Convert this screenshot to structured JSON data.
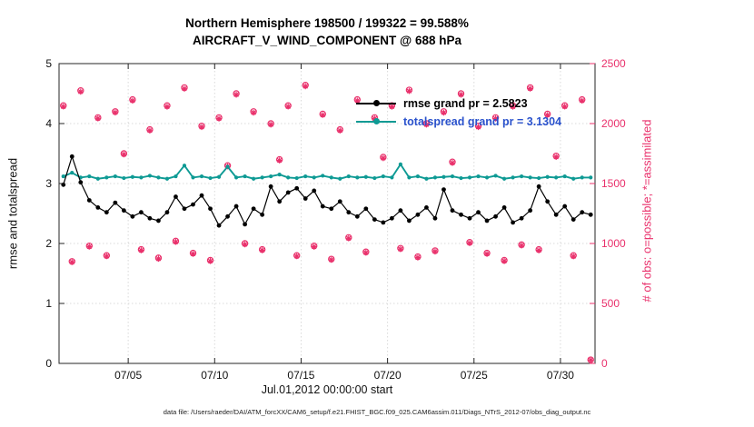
{
  "chart_data": {
    "type": "line",
    "title_line1": "Northern Hemisphere 198500 / 199322 = 99.588%",
    "title_line2": "AIRCRAFT_V_WIND_COMPONENT @ 688 hPa",
    "xlabel": "Jul.01,2012 00:00:00 start",
    "ylabel_left": "rmse and totalspread",
    "ylabel_right": "# of obs: o=possible; *=assimilated",
    "footer": "data file: /Users/raeder/DAI/ATM_forcXX/CAM6_setup/f.e21.FHIST_BGC.f09_025.CAM6assim.011/Diags_NTrS_2012-07/obs_diag_output.nc",
    "legend": [
      {
        "label": "rmse grand pr = 2.5823",
        "series": "rmse"
      },
      {
        "label": "totalspread grand pr = 3.1304",
        "series": "totalspread"
      }
    ],
    "x_range": [
      1,
      32
    ],
    "ylim_left": [
      0,
      5
    ],
    "ylim_right": [
      0,
      2500
    ],
    "xticks": {
      "values": [
        5,
        10,
        15,
        20,
        25,
        30
      ],
      "labels": [
        "07/05",
        "07/10",
        "07/15",
        "07/20",
        "07/25",
        "07/30"
      ]
    },
    "yticks_left": {
      "values": [
        0,
        1,
        2,
        3,
        4,
        5
      ],
      "labels": [
        "0",
        "1",
        "2",
        "3",
        "4",
        "5"
      ]
    },
    "yticks_right": {
      "values": [
        0,
        500,
        1000,
        1500,
        2000,
        2500
      ],
      "labels": [
        "0",
        "500",
        "1000",
        "1500",
        "2000",
        "2500"
      ]
    },
    "colors": {
      "rmse": "#000000",
      "totalspread": "#0e9a94",
      "obs": "#e9306b",
      "legend_rmse_text": "#000000",
      "legend_spread_text": "#2a52cc",
      "axis": "#262626",
      "grid": "#d9d9d9"
    },
    "x": [
      1.25,
      1.75,
      2.25,
      2.75,
      3.25,
      3.75,
      4.25,
      4.75,
      5.25,
      5.75,
      6.25,
      6.75,
      7.25,
      7.75,
      8.25,
      8.75,
      9.25,
      9.75,
      10.25,
      10.75,
      11.25,
      11.75,
      12.25,
      12.75,
      13.25,
      13.75,
      14.25,
      14.75,
      15.25,
      15.75,
      16.25,
      16.75,
      17.25,
      17.75,
      18.25,
      18.75,
      19.25,
      19.75,
      20.25,
      20.75,
      21.25,
      21.75,
      22.25,
      22.75,
      23.25,
      23.75,
      24.25,
      24.75,
      25.25,
      25.75,
      26.25,
      26.75,
      27.25,
      27.75,
      28.25,
      28.75,
      29.25,
      29.75,
      30.25,
      30.75,
      31.25,
      31.75
    ],
    "rmse": [
      2.98,
      3.45,
      3.02,
      2.72,
      2.6,
      2.52,
      2.68,
      2.55,
      2.45,
      2.52,
      2.42,
      2.38,
      2.52,
      2.78,
      2.58,
      2.65,
      2.8,
      2.58,
      2.3,
      2.45,
      2.62,
      2.32,
      2.58,
      2.48,
      2.95,
      2.7,
      2.85,
      2.92,
      2.75,
      2.88,
      2.62,
      2.58,
      2.7,
      2.52,
      2.45,
      2.58,
      2.4,
      2.35,
      2.42,
      2.55,
      2.38,
      2.48,
      2.6,
      2.42,
      2.9,
      2.55,
      2.48,
      2.42,
      2.52,
      2.38,
      2.45,
      2.6,
      2.35,
      2.42,
      2.55,
      2.95,
      2.7,
      2.48,
      2.62,
      2.4,
      2.52,
      2.48
    ],
    "totalspread": [
      3.12,
      3.18,
      3.1,
      3.12,
      3.08,
      3.1,
      3.12,
      3.09,
      3.11,
      3.1,
      3.13,
      3.1,
      3.08,
      3.12,
      3.3,
      3.1,
      3.12,
      3.09,
      3.11,
      3.28,
      3.1,
      3.12,
      3.08,
      3.1,
      3.12,
      3.15,
      3.1,
      3.09,
      3.12,
      3.1,
      3.13,
      3.1,
      3.08,
      3.12,
      3.1,
      3.11,
      3.09,
      3.12,
      3.1,
      3.32,
      3.1,
      3.12,
      3.08,
      3.1,
      3.11,
      3.12,
      3.09,
      3.1,
      3.12,
      3.1,
      3.13,
      3.08,
      3.1,
      3.12,
      3.1,
      3.09,
      3.11,
      3.1,
      3.12,
      3.08,
      3.1,
      3.1
    ],
    "obs_possible": [
      2150,
      850,
      2275,
      980,
      2050,
      900,
      2100,
      1750,
      2200,
      950,
      1950,
      880,
      2150,
      1020,
      2300,
      920,
      1980,
      860,
      2050,
      1650,
      2250,
      1000,
      2100,
      950,
      2000,
      1700,
      2150,
      900,
      2320,
      980,
      2080,
      870,
      1950,
      1050,
      2200,
      930,
      2050,
      1720,
      2150,
      960,
      2280,
      890,
      2000,
      940,
      2100,
      1680,
      2250,
      1010,
      1980,
      920,
      2050,
      860,
      2150,
      990,
      2300,
      950,
      2080,
      1730,
      2150,
      900,
      2200,
      30
    ],
    "obs_assimilated": [
      2142,
      845,
      2266,
      974,
      2043,
      894,
      2092,
      1743,
      2191,
      944,
      1942,
      873,
      2141,
      1014,
      2290,
      913,
      1971,
      854,
      2041,
      1643,
      2241,
      993,
      2091,
      944,
      1992,
      1693,
      2142,
      894,
      2311,
      973,
      2071,
      864,
      1942,
      1043,
      2191,
      924,
      2042,
      1712,
      2141,
      953,
      2271,
      883,
      1992,
      933,
      2091,
      1672,
      2241,
      1003,
      1971,
      913,
      2042,
      854,
      2141,
      983,
      2291,
      943,
      2071,
      1722,
      2142,
      893,
      2191,
      28
    ]
  }
}
